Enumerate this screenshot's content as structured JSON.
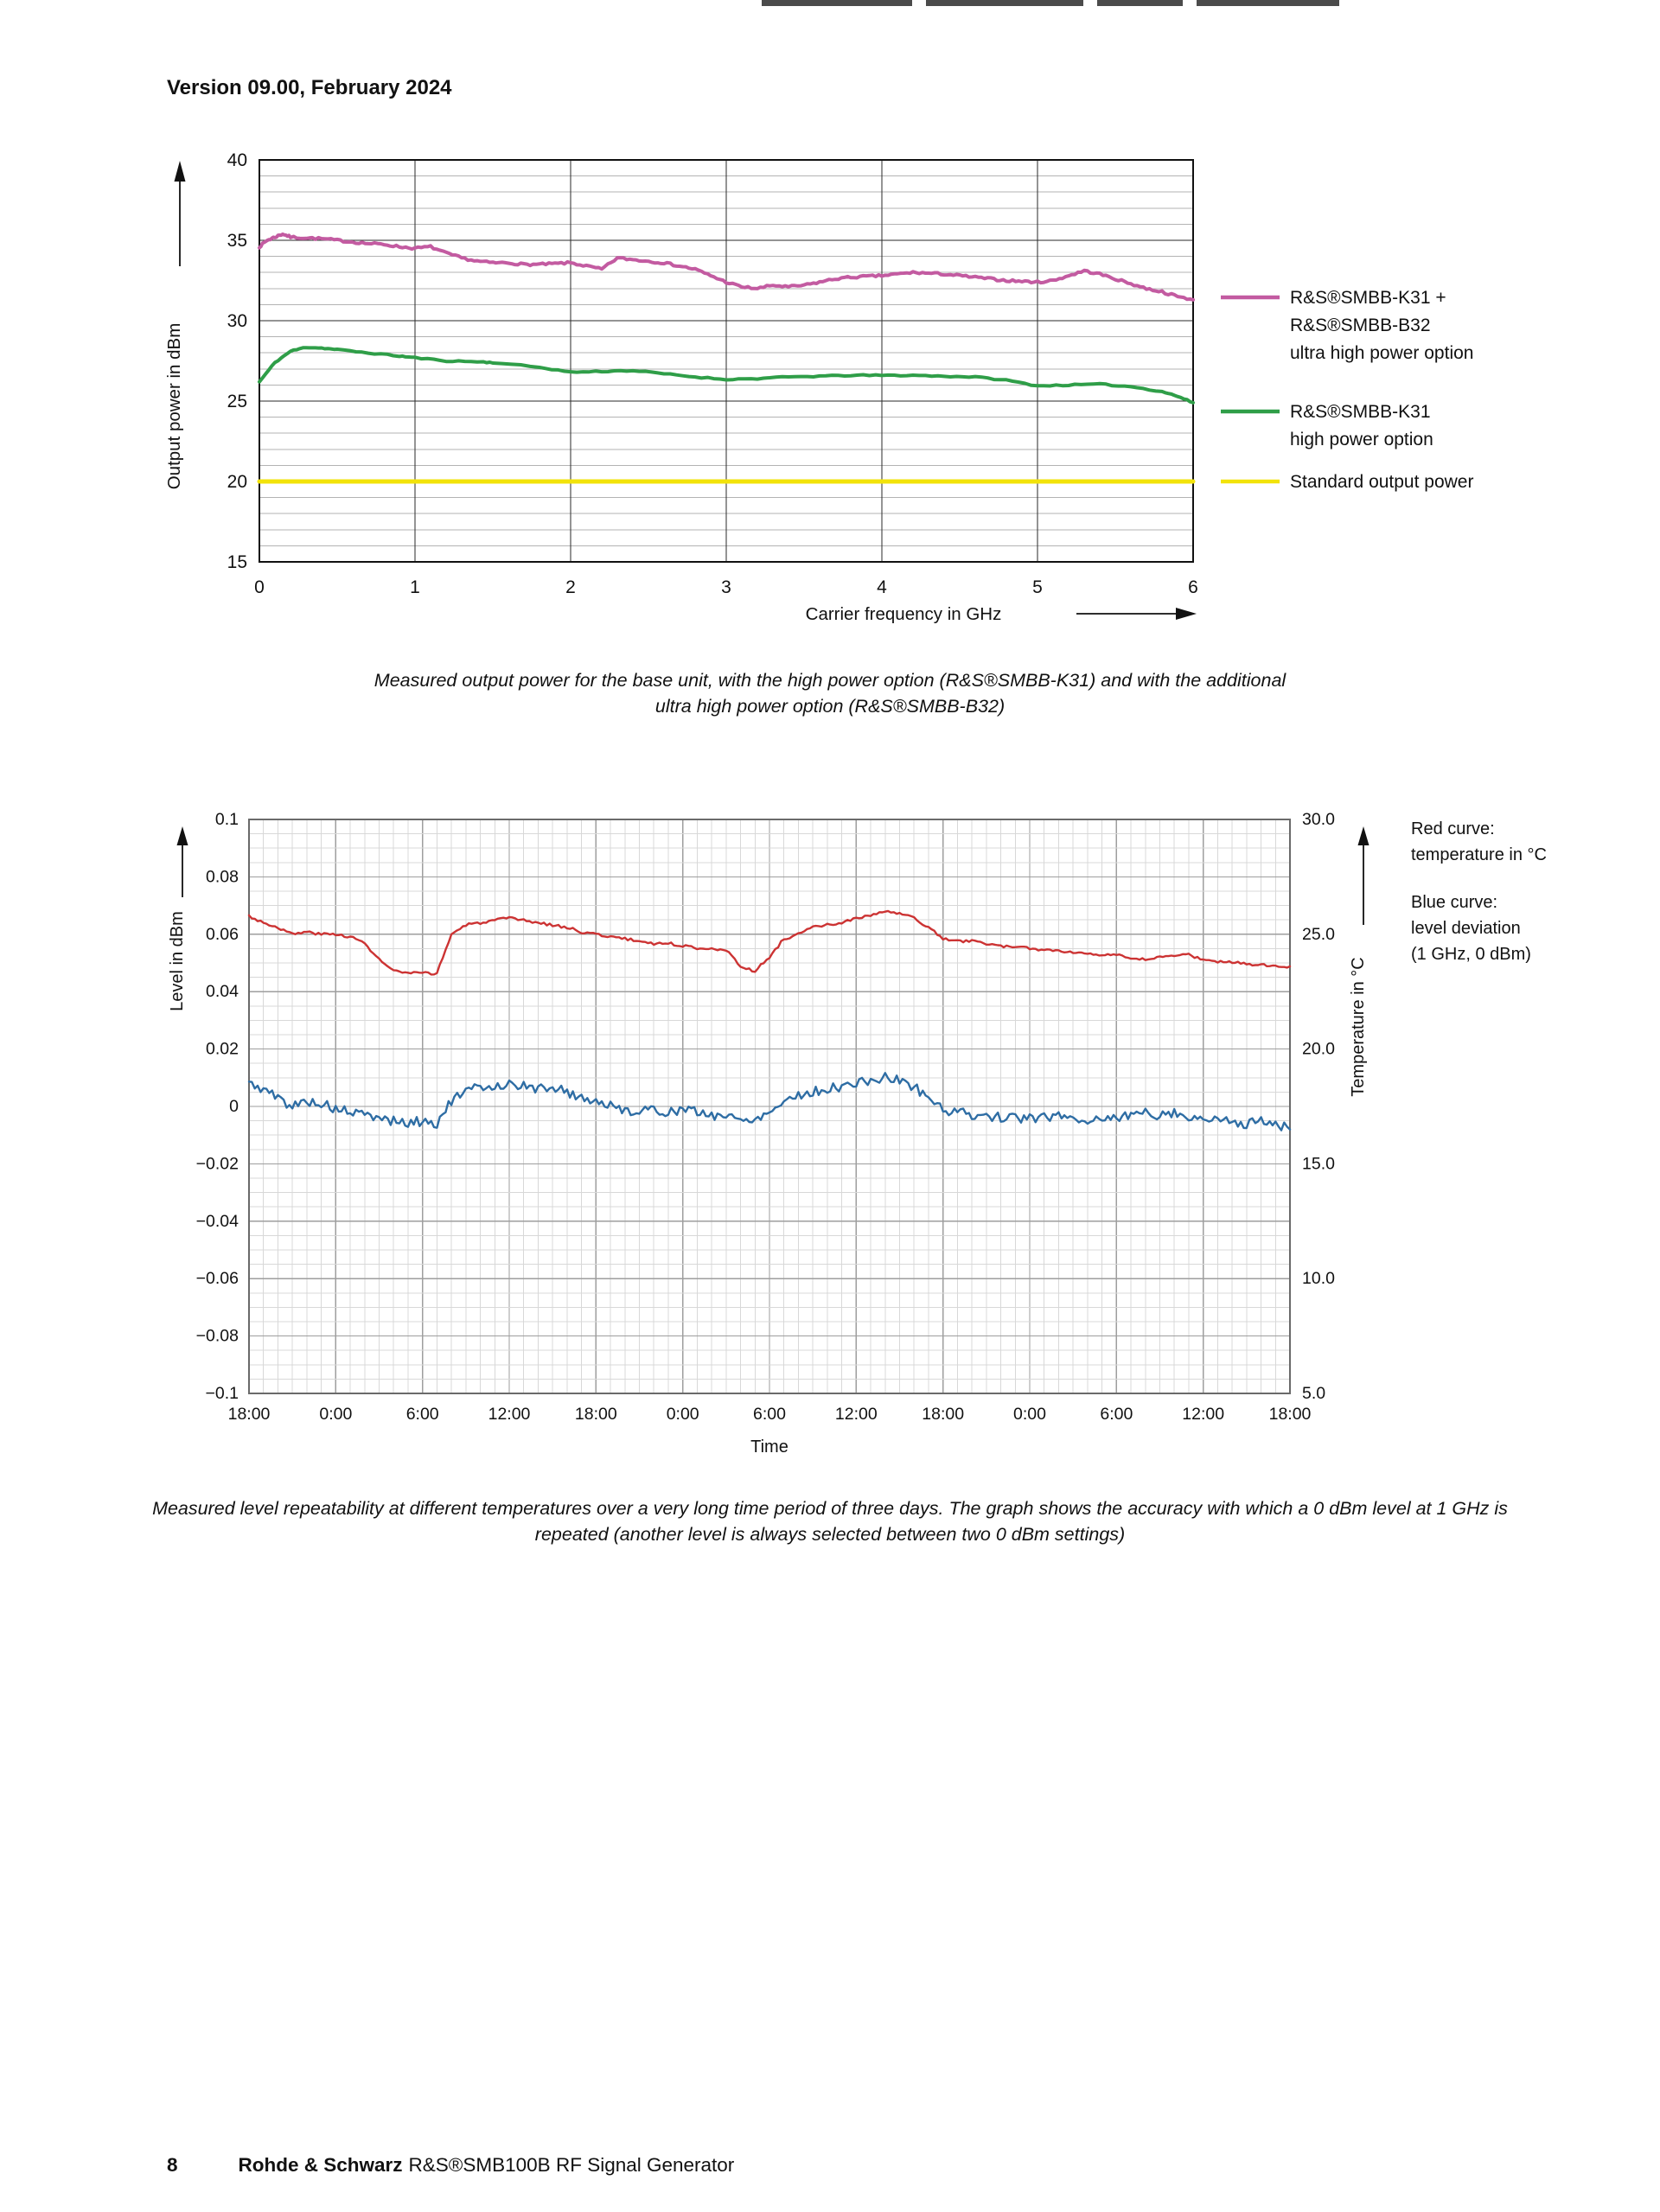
{
  "page": {
    "header": "Version 09.00, February 2024",
    "footer": {
      "page_number": "8",
      "brand": "Rohde & Schwarz",
      "product": "R&S®SMB100B RF Signal Generator"
    }
  },
  "chart_data": [
    {
      "type": "line",
      "title": "",
      "xlabel": "Carrier frequency in GHz",
      "ylabel": "Output power in dBm",
      "xlim": [
        0,
        6
      ],
      "ylim": [
        15,
        40
      ],
      "xticks": [
        0,
        1,
        2,
        3,
        4,
        5,
        6
      ],
      "yticks": [
        40,
        35,
        30,
        25,
        20,
        15
      ],
      "y_minor_step": 1,
      "grid": "on",
      "legend_position": "right",
      "series": [
        {
          "name": "ultra-high-power",
          "color": "#c35ba1",
          "noise": 0.07,
          "x": [
            0,
            0.05,
            0.1,
            0.15,
            0.2,
            0.3,
            0.4,
            0.5,
            0.6,
            0.7,
            0.8,
            0.9,
            1.0,
            1.1,
            1.2,
            1.3,
            1.4,
            1.5,
            1.6,
            1.7,
            1.8,
            1.9,
            2.0,
            2.1,
            2.2,
            2.3,
            2.4,
            2.5,
            2.6,
            2.7,
            2.8,
            2.9,
            3.0,
            3.1,
            3.2,
            3.3,
            3.4,
            3.5,
            3.6,
            3.7,
            3.8,
            3.9,
            4.0,
            4.1,
            4.2,
            4.3,
            4.4,
            4.5,
            4.6,
            4.7,
            4.8,
            4.9,
            5.0,
            5.1,
            5.2,
            5.3,
            5.4,
            5.5,
            5.6,
            5.7,
            5.8,
            5.9,
            6.0
          ],
          "y": [
            34.6,
            35.0,
            35.2,
            35.4,
            35.2,
            35.15,
            35.1,
            35.0,
            34.9,
            34.8,
            34.75,
            34.6,
            34.5,
            34.6,
            34.2,
            33.9,
            33.7,
            33.6,
            33.6,
            33.5,
            33.5,
            33.55,
            33.6,
            33.4,
            33.2,
            33.9,
            33.8,
            33.7,
            33.6,
            33.4,
            33.2,
            32.8,
            32.4,
            32.1,
            32.0,
            32.2,
            32.1,
            32.2,
            32.4,
            32.6,
            32.7,
            32.75,
            32.8,
            32.9,
            33.0,
            32.95,
            32.9,
            32.8,
            32.7,
            32.6,
            32.5,
            32.45,
            32.4,
            32.5,
            32.8,
            33.1,
            32.9,
            32.6,
            32.3,
            32.0,
            31.8,
            31.5,
            31.3
          ]
        },
        {
          "name": "high-power",
          "color": "#2f9e48",
          "noise": 0.04,
          "x": [
            0,
            0.1,
            0.2,
            0.3,
            0.4,
            0.5,
            0.7,
            0.9,
            1.0,
            1.2,
            1.4,
            1.5,
            1.8,
            2.0,
            2.2,
            2.4,
            2.6,
            2.8,
            3.0,
            3.2,
            3.4,
            3.6,
            3.8,
            4.0,
            4.2,
            4.4,
            4.6,
            4.8,
            5.0,
            5.2,
            5.4,
            5.6,
            5.8,
            5.9,
            6.0
          ],
          "y": [
            26.2,
            27.4,
            28.1,
            28.35,
            28.3,
            28.2,
            28.0,
            27.8,
            27.7,
            27.5,
            27.45,
            27.4,
            27.1,
            26.8,
            26.85,
            26.9,
            26.7,
            26.5,
            26.35,
            26.4,
            26.5,
            26.55,
            26.6,
            26.6,
            26.6,
            26.55,
            26.5,
            26.3,
            25.95,
            26.0,
            26.05,
            25.9,
            25.6,
            25.3,
            24.9
          ]
        },
        {
          "name": "standard-output-power",
          "color": "#f2e30a",
          "noise": 0,
          "x": [
            0,
            6
          ],
          "y": [
            20,
            20
          ]
        }
      ],
      "legend": [
        {
          "color": "#c35ba1",
          "lines": [
            "R&S®SMBB-K31 +",
            "R&S®SMBB-B32",
            "ultra high power option"
          ]
        },
        {
          "color": "#2f9e48",
          "lines": [
            "R&S®SMBB-K31",
            "high power option"
          ]
        },
        {
          "color": "#f2e30a",
          "lines": [
            "Standard output power"
          ]
        }
      ],
      "caption": "Measured output power for the base unit, with the high power option (R&S®SMBB-K31) and with the additional ultra high power option (R&S®SMBB-B32)"
    },
    {
      "type": "line",
      "title": "",
      "xlabel": "Time",
      "ylabel": "Level in dBm",
      "ylabel_right": "Temperature in °C",
      "x_hours_range": [
        0,
        72
      ],
      "xtick_hours": [
        0,
        6,
        12,
        18,
        24,
        30,
        36,
        42,
        48,
        54,
        60,
        66,
        72
      ],
      "xtick_labels": [
        "18:00",
        "0:00",
        "6:00",
        "12:00",
        "18:00",
        "0:00",
        "6:00",
        "12:00",
        "18:00",
        "0:00",
        "6:00",
        "12:00",
        "18:00"
      ],
      "ylim_left": [
        -0.1,
        0.1
      ],
      "yticks_left": {
        "values": [
          0.1,
          0.08,
          0.06,
          0.04,
          0.02,
          0,
          -0.02,
          -0.04,
          -0.06,
          -0.08,
          -0.1
        ],
        "labels": [
          "0.1",
          "0.08",
          "0.06",
          "0.04",
          "0.02",
          "0",
          "−0.02",
          "−0.04",
          "−0.06",
          "−0.08",
          "−0.1"
        ]
      },
      "ylim_right": [
        5,
        30
      ],
      "yticks_right": {
        "values": [
          30,
          25,
          20,
          15,
          10,
          5
        ],
        "labels": [
          "30.0",
          "25.0",
          "20.0",
          "15.0",
          "10.0",
          "5.0"
        ]
      },
      "grid": "fine",
      "series": [
        {
          "name": "temperature",
          "axis": "right",
          "color": "#cc3333",
          "noise": 0.06,
          "x": [
            0,
            1,
            2,
            3,
            4,
            5,
            6,
            7,
            8,
            9,
            10,
            11,
            12,
            13,
            14,
            15,
            16,
            17,
            18,
            19,
            20,
            21,
            22,
            23,
            24,
            25,
            26,
            27,
            28,
            29,
            30,
            31,
            32,
            33,
            34,
            35,
            36,
            37,
            38,
            39,
            40,
            41,
            42,
            43,
            44,
            45,
            46,
            47,
            48,
            49,
            50,
            51,
            52,
            53,
            54,
            55,
            56,
            57,
            58,
            59,
            60,
            61,
            62,
            63,
            64,
            65,
            66,
            67,
            68,
            69,
            70,
            71,
            72
          ],
          "y": [
            25.8,
            25.5,
            25.3,
            25.0,
            25.1,
            25.0,
            25.0,
            24.9,
            24.6,
            23.9,
            23.4,
            23.3,
            23.3,
            23.3,
            25.0,
            25.4,
            25.5,
            25.6,
            25.7,
            25.6,
            25.5,
            25.4,
            25.3,
            25.1,
            25.0,
            24.9,
            24.8,
            24.7,
            24.6,
            24.6,
            24.5,
            24.4,
            24.4,
            24.3,
            23.6,
            23.4,
            24.0,
            24.8,
            25.0,
            25.3,
            25.4,
            25.5,
            25.7,
            25.8,
            26.0,
            25.9,
            25.7,
            25.3,
            24.8,
            24.7,
            24.7,
            24.6,
            24.5,
            24.4,
            24.4,
            24.3,
            24.3,
            24.2,
            24.2,
            24.1,
            24.1,
            23.9,
            23.9,
            24.0,
            24.1,
            24.1,
            23.9,
            23.8,
            23.8,
            23.7,
            23.7,
            23.6,
            23.6
          ]
        },
        {
          "name": "level-deviation",
          "axis": "left",
          "color": "#2e6da4",
          "noise": 0.0017,
          "x": [
            0,
            1,
            2,
            3,
            4,
            5,
            6,
            7,
            8,
            9,
            10,
            11,
            12,
            13,
            14,
            15,
            16,
            17,
            18,
            19,
            20,
            21,
            22,
            23,
            24,
            25,
            26,
            27,
            28,
            29,
            30,
            31,
            32,
            33,
            34,
            35,
            36,
            37,
            38,
            39,
            40,
            41,
            42,
            43,
            44,
            45,
            46,
            47,
            48,
            49,
            50,
            51,
            52,
            53,
            54,
            55,
            56,
            57,
            58,
            59,
            60,
            61,
            62,
            63,
            64,
            65,
            66,
            67,
            68,
            69,
            70,
            71,
            72
          ],
          "y": [
            0.008,
            0.006,
            0.003,
            0.0,
            0.002,
            0.001,
            -0.001,
            -0.002,
            -0.003,
            -0.004,
            -0.005,
            -0.006,
            -0.005,
            -0.006,
            0.002,
            0.005,
            0.007,
            0.007,
            0.008,
            0.007,
            0.006,
            0.007,
            0.005,
            0.003,
            0.002,
            0.0,
            -0.001,
            -0.002,
            -0.001,
            -0.002,
            -0.001,
            -0.002,
            -0.003,
            -0.003,
            -0.005,
            -0.004,
            -0.002,
            0.002,
            0.004,
            0.005,
            0.006,
            0.007,
            0.008,
            0.009,
            0.01,
            0.009,
            0.007,
            0.003,
            -0.001,
            -0.002,
            -0.003,
            -0.003,
            -0.004,
            -0.004,
            -0.004,
            -0.004,
            -0.003,
            -0.004,
            -0.005,
            -0.004,
            -0.004,
            -0.003,
            -0.002,
            -0.003,
            -0.002,
            -0.004,
            -0.004,
            -0.005,
            -0.005,
            -0.006,
            -0.005,
            -0.006,
            -0.008
          ]
        }
      ],
      "legend": [
        {
          "color": "#cc3333",
          "lines": [
            "Red curve:",
            "temperature in °C"
          ]
        },
        {
          "color": "#2e6da4",
          "lines": [
            "Blue curve:",
            "level deviation",
            "(1 GHz, 0 dBm)"
          ]
        }
      ],
      "caption": "Measured level repeatability at different temperatures over a very long time period of three days. The graph shows the accuracy with which a 0 dBm level at 1 GHz is repeated (another level is always selected between two 0 dBm settings)"
    }
  ]
}
